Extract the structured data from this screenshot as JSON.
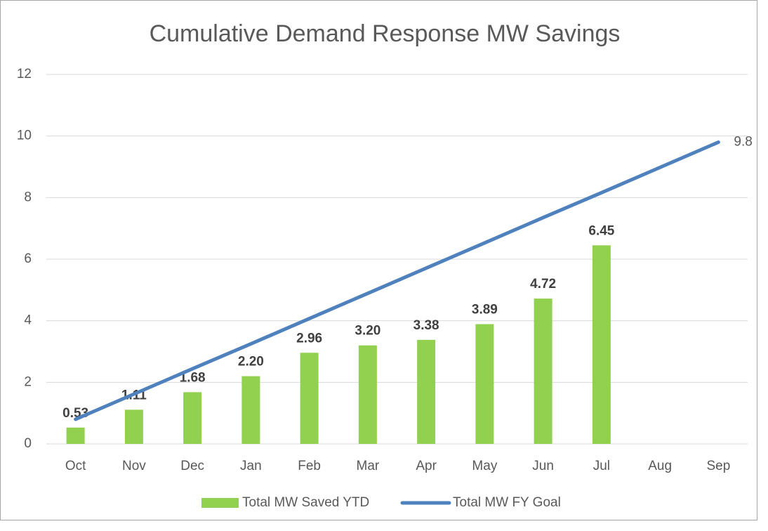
{
  "chart_data": {
    "type": "combo",
    "title": "Cumulative Demand Response MW Savings",
    "categories": [
      "Oct",
      "Nov",
      "Dec",
      "Jan",
      "Feb",
      "Mar",
      "Apr",
      "May",
      "Jun",
      "Jul",
      "Aug",
      "Sep"
    ],
    "series": [
      {
        "name": "Total MW Saved YTD",
        "type": "bar",
        "color": "#92d050",
        "values": [
          0.53,
          1.11,
          1.68,
          2.2,
          2.96,
          3.2,
          3.38,
          3.89,
          4.72,
          6.45,
          null,
          null
        ],
        "value_labels": [
          "0.53",
          "1.11",
          "1.68",
          "2.20",
          "2.96",
          "3.20",
          "3.38",
          "3.89",
          "4.72",
          "6.45",
          null,
          null
        ]
      },
      {
        "name": "Total MW FY Goal",
        "type": "line",
        "color": "#4f81bd",
        "values": [
          0.8,
          1.62,
          2.44,
          3.25,
          4.07,
          4.89,
          5.71,
          6.53,
          7.35,
          8.16,
          8.98,
          9.8
        ],
        "value_labels": [
          null,
          null,
          null,
          null,
          null,
          null,
          null,
          null,
          null,
          null,
          null,
          "9.8"
        ]
      }
    ],
    "ylim": [
      0,
      12
    ],
    "yticks": [
      0,
      2,
      4,
      6,
      8,
      10,
      12
    ],
    "grid": true,
    "legend": "bottom"
  }
}
